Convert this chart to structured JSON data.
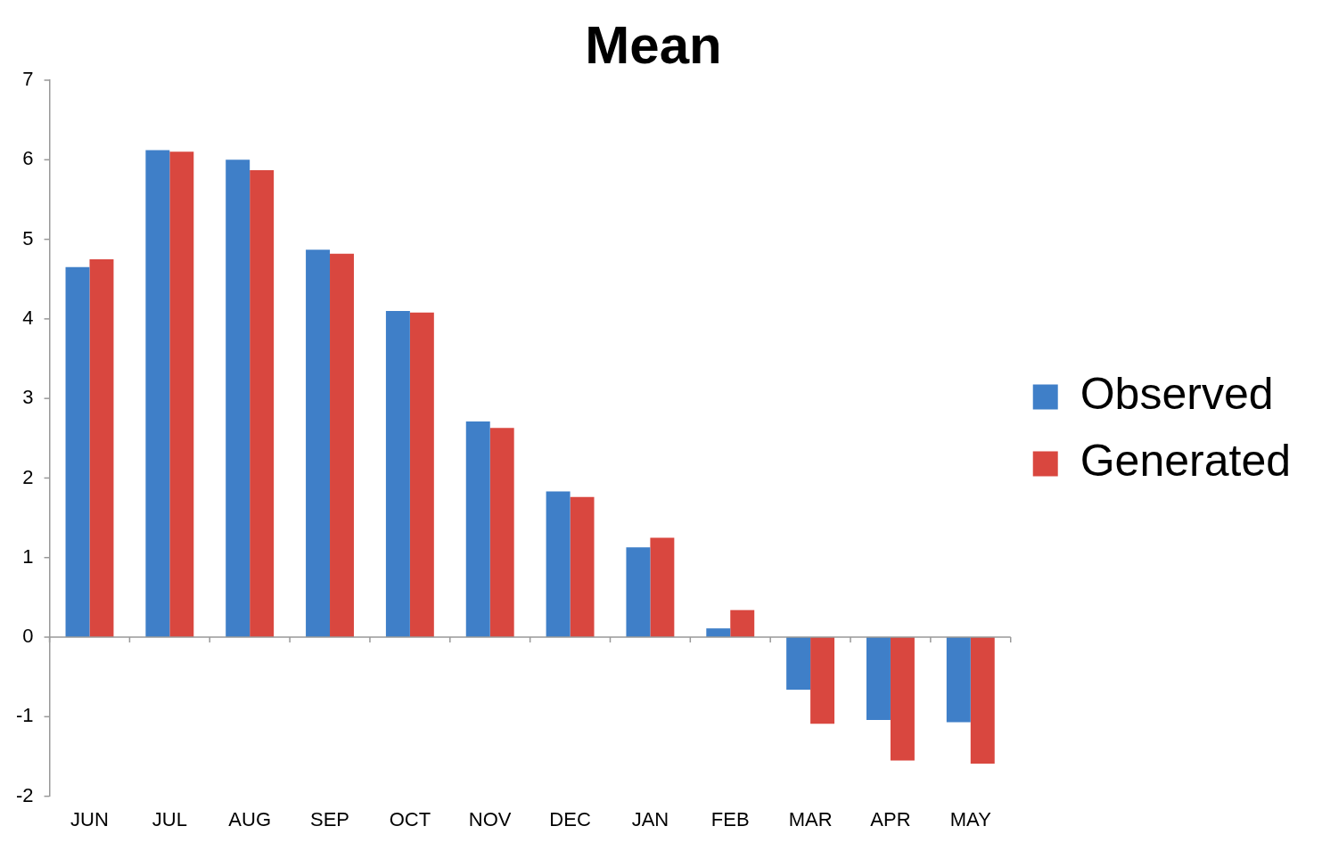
{
  "chart_data": {
    "type": "bar",
    "title": "Mean",
    "categories": [
      "JUN",
      "JUL",
      "AUG",
      "SEP",
      "OCT",
      "NOV",
      "DEC",
      "JAN",
      "FEB",
      "MAR",
      "APR",
      "MAY"
    ],
    "series": [
      {
        "name": "Observed",
        "color": "#3f7fc8",
        "values": [
          4.65,
          6.12,
          6.0,
          4.87,
          4.1,
          2.71,
          1.83,
          1.13,
          0.11,
          -0.66,
          -1.04,
          -1.07
        ]
      },
      {
        "name": "Generated",
        "color": "#d9473f",
        "values": [
          4.75,
          6.1,
          5.87,
          4.82,
          4.08,
          2.63,
          1.76,
          1.25,
          0.34,
          -1.09,
          -1.55,
          -1.59
        ]
      }
    ],
    "ylim": [
      -2,
      7
    ],
    "yticks": [
      -2,
      -1,
      0,
      1,
      2,
      3,
      4,
      5,
      6,
      7
    ],
    "legend": "right"
  }
}
